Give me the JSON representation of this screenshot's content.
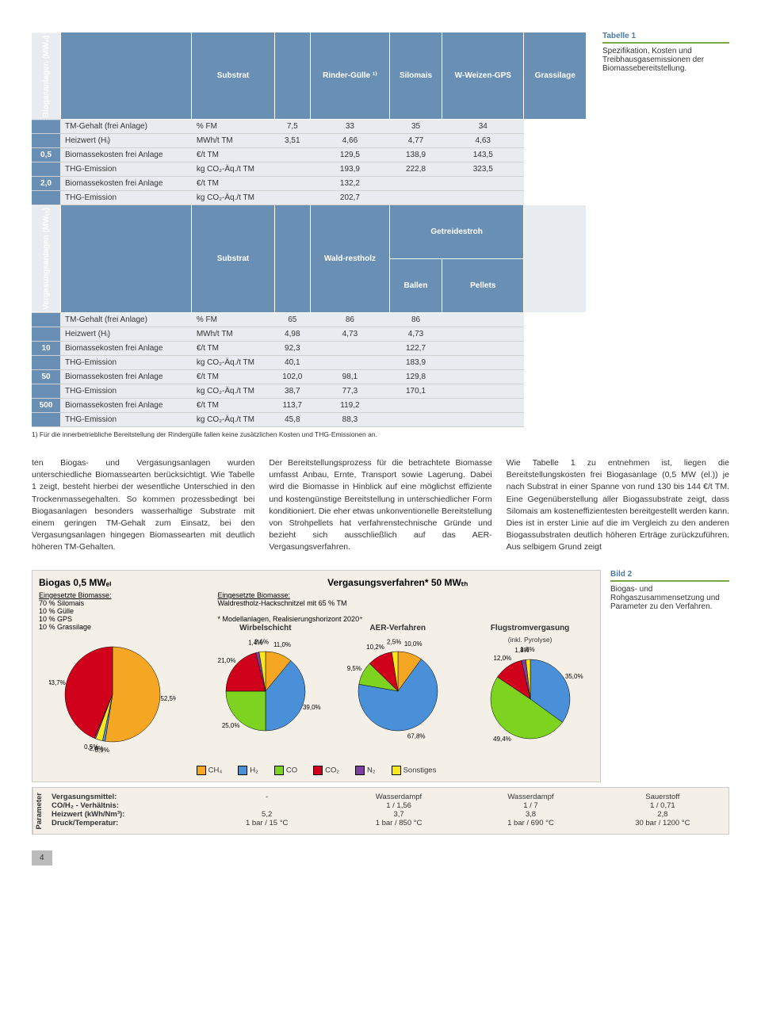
{
  "table1": {
    "section1": {
      "vhead": "Biogasanlagen (MWₑₗ)",
      "headers": [
        "Substrat",
        "",
        "Rinder-Gülle ¹⁾",
        "Silomais",
        "W-Weizen-GPS",
        "Grassilage"
      ],
      "rows": [
        {
          "g": "",
          "label": "TM-Gehalt (frei Anlage)",
          "unit": "% FM",
          "v": [
            "7,5",
            "33",
            "35",
            "34"
          ]
        },
        {
          "g": "",
          "label": "Heizwert (Hᵢ)",
          "unit": "MWh/t TM",
          "v": [
            "3,51",
            "4,66",
            "4,77",
            "4,63"
          ]
        },
        {
          "g": "0,5",
          "label": "Biomassekosten frei Anlage",
          "unit": "€/t TM",
          "v": [
            "",
            "129,5",
            "138,9",
            "143,5"
          ]
        },
        {
          "g": "",
          "label": "THG-Emission",
          "unit": "kg CO₂-Äq./t TM",
          "v": [
            "",
            "193,9",
            "222,8",
            "323,5"
          ]
        },
        {
          "g": "2,0",
          "label": "Biomassekosten frei Anlage",
          "unit": "€/t TM",
          "v": [
            "",
            "132,2",
            "",
            ""
          ]
        },
        {
          "g": "",
          "label": "THG-Emission",
          "unit": "kg CO₂-Äq./t TM",
          "v": [
            "",
            "202,7",
            "",
            ""
          ]
        }
      ]
    },
    "section2": {
      "vhead": "Vergasungsanlagen (MWₜₕ)",
      "headers": [
        "Substrat",
        "",
        "Wald-restholz",
        "Getreidestroh Ballen",
        "Pellets",
        ""
      ],
      "sub_headers": [
        "Wald-restholz",
        "Ballen",
        "Pellets"
      ],
      "rows": [
        {
          "g": "",
          "label": "TM-Gehalt (frei Anlage)",
          "unit": "% FM",
          "v": [
            "65",
            "86",
            "86"
          ]
        },
        {
          "g": "",
          "label": "Heizwert (Hᵢ)",
          "unit": "MWh/t TM",
          "v": [
            "4,98",
            "4,73",
            "4,73"
          ]
        },
        {
          "g": "10",
          "label": "Biomassekosten frei Anlage",
          "unit": "€/t TM",
          "v": [
            "92,3",
            "",
            "122,7"
          ]
        },
        {
          "g": "",
          "label": "THG-Emission",
          "unit": "kg CO₂-Äq./t TM",
          "v": [
            "40,1",
            "",
            "183,9"
          ]
        },
        {
          "g": "50",
          "label": "Biomassekosten frei Anlage",
          "unit": "€/t TM",
          "v": [
            "102,0",
            "98,1",
            "129,8"
          ]
        },
        {
          "g": "",
          "label": "THG-Emission",
          "unit": "kg CO₂-Äq./t TM",
          "v": [
            "38,7",
            "77,3",
            "170,1"
          ]
        },
        {
          "g": "500",
          "label": "Biomassekosten frei Anlage",
          "unit": "€/t TM",
          "v": [
            "113,7",
            "119,2",
            ""
          ]
        },
        {
          "g": "",
          "label": "THG-Emission",
          "unit": "kg CO₂-Äq./t TM",
          "v": [
            "45,8",
            "88,3",
            ""
          ]
        }
      ]
    },
    "footnote": "1)   Für die innerbetriebliche Bereitstellung der Rindergülle fallen keine zusätzlichen Kosten und THG-Emissionen an.",
    "caption_num": "Tabelle 1",
    "caption_txt": "Spezifikation, Kosten und Treibhausgasemissionen der Biomassebereitstellung."
  },
  "body": {
    "c1": "ten Biogas- und Vergasungsanlagen wurden unterschiedliche Biomassearten berücksichtigt. Wie Tabelle 1 zeigt, besteht hierbei der wesentliche Unterschied in den Trockenmassegehalten. So kommen prozessbedingt bei Biogasanlagen besonders wasserhaltige Substrate mit einem geringen TM-Gehalt zum Einsatz, bei den Vergasungsanlagen hingegen Biomassearten mit deutlich höheren TM-Gehalten.",
    "c2": "Der Bereitstellungsprozess für die betrachtete Biomasse umfasst Anbau, Ernte, Transport sowie Lagerung. Dabei wird die Biomasse in Hinblick auf eine möglichst effiziente und kostengünstige Bereitstellung in unterschiedlicher Form konditioniert. Die eher etwas unkonventionelle Bereitstellung von Strohpellets hat verfahrenstechnische Gründe und bezieht sich ausschließlich auf das AER-Vergasungsverfahren.",
    "c3": "Wie Tabelle 1 zu entnehmen ist, liegen die Bereitstellungskosten frei Biogasanlage (0,5 MW (el.)) je nach Substrat in einer Spanne von rund 130 bis 144 €/t TM. Eine Gegenüberstellung aller Biogassubstrate zeigt, dass Silomais am kosteneffizientesten bereitgestellt werden kann. Dies ist in erster Linie auf die im Vergleich zu den anderen Biogassubstraten deutlich höheren Erträge zurückzuführen. Aus selbigem Grund zeigt"
  },
  "fig": {
    "caption_num": "Bild 2",
    "caption_txt": "Biogas- und Rohgaszusammensetzung und Parameter zu den Verfahren.",
    "colors": {
      "CH4": "#f5a623",
      "H2": "#4a90d9",
      "CO": "#7ed321",
      "CO2": "#d0021b",
      "N2": "#7b3fa0",
      "Sonst": "#f8e71c"
    },
    "legend": [
      "CH₄",
      "H₂",
      "CO",
      "CO₂",
      "N₂",
      "Sonstiges"
    ],
    "left": {
      "title": "Biogas 0,5 MWₑₗ",
      "sub_head": "Eingesetzte Biomasse:",
      "sub": "70 % Silomais\n10 % Gülle\n10 % GPS\n10 % Grassilage",
      "pie": [
        {
          "label": "52,5%",
          "v": 52.5,
          "c": "CH4"
        },
        {
          "label": "0,9%",
          "v": 0.9,
          "c": "H2"
        },
        {
          "label": "2,4%",
          "v": 2.4,
          "c": "Sonst"
        },
        {
          "label": "0,5%",
          "v": 0.5,
          "c": "N2"
        },
        {
          "label": "43,7%",
          "v": 43.7,
          "c": "CO2"
        }
      ]
    },
    "right": {
      "title": "Vergasungsverfahren* 50 MWₜₕ",
      "sub_head": "Eingesetzte Biomasse:",
      "sub": "Waldrestholz-Hackschnitzel mit 65 % TM",
      "note": "* Modellanlagen, Realisierungshorizont 2020⁺",
      "cols": [
        {
          "t": "Wirbelschicht",
          "pie": [
            {
              "label": "11,0%",
              "v": 11.0,
              "c": "CH4"
            },
            {
              "label": "39,0%",
              "v": 39.0,
              "c": "H2"
            },
            {
              "label": "25,0%",
              "v": 25.0,
              "c": "CO"
            },
            {
              "label": "21,0%",
              "v": 21.0,
              "c": "CO2"
            },
            {
              "label": "1,4%",
              "v": 1.4,
              "c": "N2"
            },
            {
              "label": "2,6%",
              "v": 2.6,
              "c": "Sonst"
            }
          ]
        },
        {
          "t": "AER-Verfahren",
          "pie": [
            {
              "label": "10,0%",
              "v": 10.0,
              "c": "CH4"
            },
            {
              "label": "67,8%",
              "v": 67.8,
              "c": "H2"
            },
            {
              "label": "9,5%",
              "v": 9.5,
              "c": "CO"
            },
            {
              "label": "10,2%",
              "v": 10.2,
              "c": "CO2"
            },
            {
              "label": "2,5%",
              "v": 2.5,
              "c": "Sonst"
            }
          ]
        },
        {
          "t": "Flugstromvergasung",
          "sub": "(inkl. Pyrolyse)",
          "pie": [
            {
              "label": "35,0%",
              "v": 35.0,
              "c": "H2"
            },
            {
              "label": "49,4%",
              "v": 49.4,
              "c": "CO"
            },
            {
              "label": "12,0%",
              "v": 12.0,
              "c": "CO2"
            },
            {
              "label": "1,8%",
              "v": 1.8,
              "c": "N2"
            },
            {
              "label": "1,8%",
              "v": 1.8,
              "c": "Sonst"
            }
          ]
        }
      ]
    }
  },
  "params": {
    "head": "Parameter",
    "labels": [
      "Vergasungsmittel:",
      "CO/H₂ - Verhältnis:",
      "Heizwert (kWh/Nm³):",
      "Druck/Temperatur:"
    ],
    "cols": [
      [
        "-",
        "",
        "5,2",
        "1 bar / 15 °C"
      ],
      [
        "Wasserdampf",
        "1 / 1,56",
        "3,7",
        "1 bar / 850 °C"
      ],
      [
        "Wasserdampf",
        "1 / 7",
        "3,8",
        "1 bar / 690 °C"
      ],
      [
        "Sauerstoff",
        "1 / 0,71",
        "2,8",
        "30 bar / 1200 °C"
      ]
    ]
  },
  "page": "4"
}
